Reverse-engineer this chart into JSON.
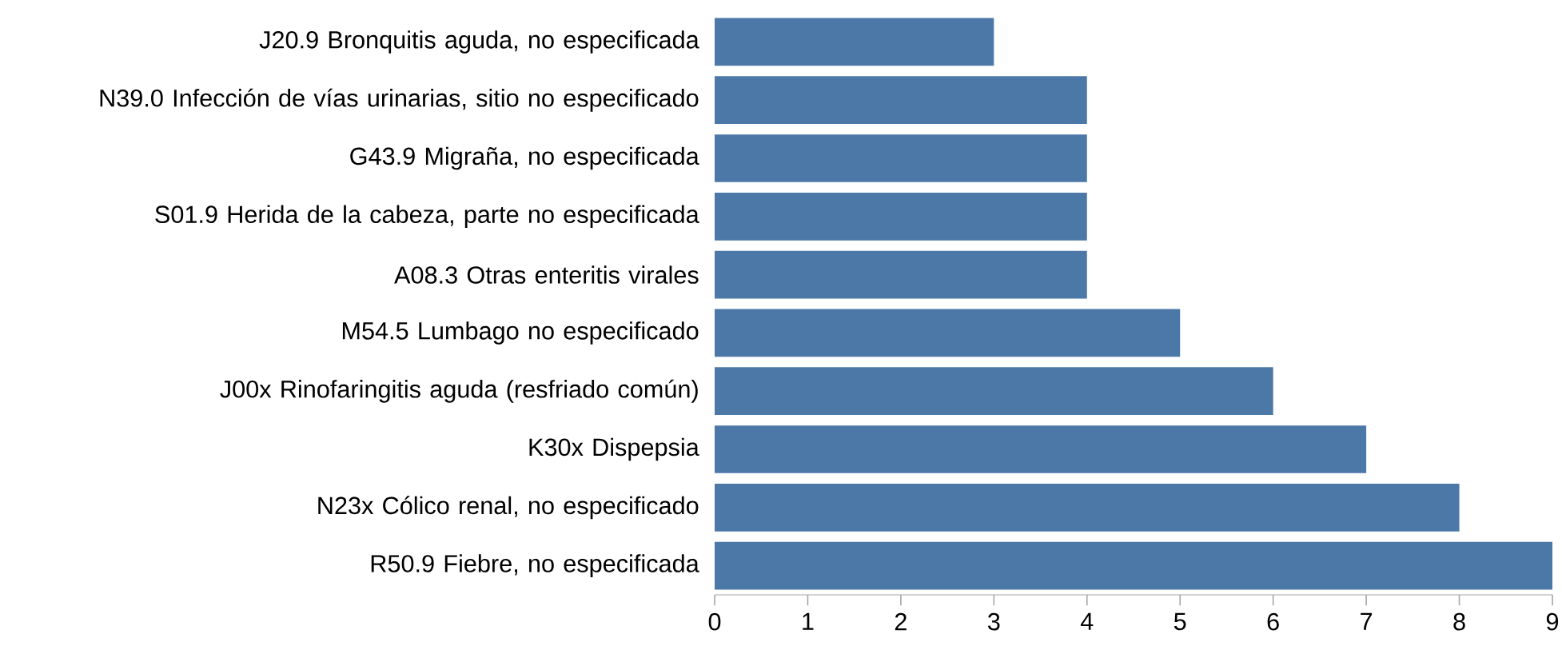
{
  "chart_data": {
    "type": "bar",
    "orientation": "horizontal",
    "categories": [
      "J20.9 Bronquitis aguda, no especificada",
      "N39.0 Infección de vías urinarias, sitio no especificado",
      "G43.9 Migraña, no especificada",
      "S01.9 Herida de la cabeza, parte no especificada",
      "A08.3 Otras enteritis virales",
      "M54.5 Lumbago no especificado",
      "J00x Rinofaringitis aguda (resfriado común)",
      "K30x Dispepsia",
      "N23x Cólico renal, no especificado",
      "R50.9 Fiebre, no especificada"
    ],
    "values": [
      3,
      4,
      4,
      4,
      4,
      5,
      6,
      7,
      8,
      9
    ],
    "color": "#4c78a8",
    "xlim": [
      0,
      9
    ],
    "xticks": [
      0,
      1,
      2,
      3,
      4,
      5,
      6,
      7,
      8,
      9
    ]
  }
}
